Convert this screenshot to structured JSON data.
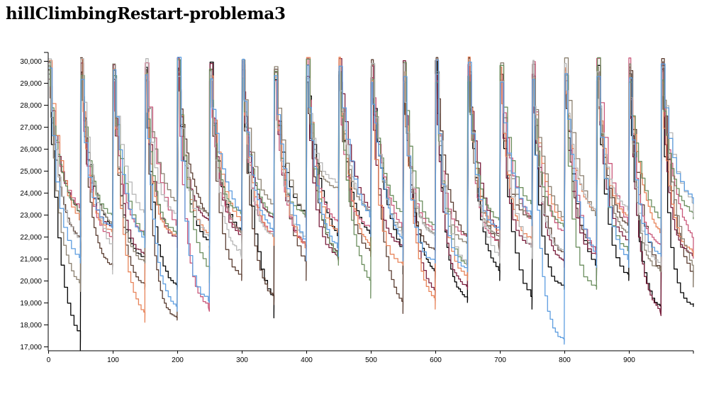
{
  "chart_data": {
    "type": "line",
    "title": "hillClimbingRestart-problema3",
    "xlabel": "",
    "ylabel": "",
    "xlim": [
      0,
      1000
    ],
    "ylim": [
      16800,
      30400
    ],
    "x_ticks": [
      0,
      100,
      200,
      300,
      400,
      500,
      600,
      700,
      800,
      900
    ],
    "x_tick_labels": [
      "0",
      "100",
      "200",
      "300",
      "400",
      "500",
      "600",
      "700",
      "800",
      "900"
    ],
    "y_ticks": [
      17000,
      18000,
      19000,
      20000,
      21000,
      22000,
      23000,
      24000,
      25000,
      26000,
      27000,
      28000,
      29000,
      30000
    ],
    "y_tick_labels": [
      "17,000",
      "18,000",
      "19,000",
      "20,000",
      "21,000",
      "22,000",
      "23,000",
      "24,000",
      "25,000",
      "26,000",
      "27,000",
      "28,000",
      "29,000",
      "30,000"
    ],
    "grid": false,
    "legend": "none",
    "restart_period": 50,
    "series": [
      {
        "color": "#000000",
        "minima": [
          16800,
          22000,
          21000,
          19600,
          21500,
          22000,
          18300,
          22500,
          21000,
          21800,
          20300,
          19900,
          19000,
          20000,
          18700,
          19600,
          20000,
          20000,
          18500,
          18800
        ]
      },
      {
        "color": "#5a3d31",
        "minima": [
          21500,
          20500,
          19600,
          18200,
          22200,
          20000,
          18900,
          20000,
          20900,
          21100,
          18500,
          21300,
          21500,
          21300,
          22800,
          21000,
          21300,
          22100,
          19600,
          19700
        ]
      },
      {
        "color": "#7a1f3d",
        "minima": [
          22500,
          22400,
          21000,
          21900,
          22500,
          21800,
          22600,
          21300,
          21100,
          22500,
          21500,
          19100,
          19600,
          21100,
          21500,
          20600,
          21000,
          21600,
          18400,
          21100
        ]
      },
      {
        "color": "#c9587a",
        "minima": [
          23000,
          21800,
          22000,
          21500,
          18600,
          21900,
          22000,
          21300,
          22500,
          22300,
          21700,
          22200,
          21900,
          21700,
          21800,
          21800,
          20700,
          21700,
          21500,
          21000
        ]
      },
      {
        "color": "#e8845a",
        "minima": [
          21800,
          22200,
          18100,
          22000,
          21900,
          22200,
          21600,
          21000,
          22000,
          21100,
          20700,
          18700,
          20000,
          22100,
          21700,
          22000,
          22800,
          22700,
          21300,
          21100
        ]
      },
      {
        "color": "#8b8070",
        "minima": [
          19500,
          22000,
          20800,
          22800,
          23000,
          21700,
          23000,
          22000,
          24100,
          23000,
          21700,
          22000,
          21600,
          21900,
          22500,
          21900,
          22000,
          21900,
          20400,
          19700
        ]
      },
      {
        "color": "#6b8e5e",
        "minima": [
          22700,
          22800,
          21500,
          22100,
          19900,
          23000,
          22600,
          23000,
          20700,
          19200,
          22500,
          22200,
          20500,
          22500,
          23000,
          22400,
          19600,
          21200,
          22200,
          22800
        ]
      },
      {
        "color": "#b7b7b7",
        "minima": [
          21600,
          20300,
          22400,
          22800,
          21600,
          21000,
          22000,
          21700,
          24400,
          22700,
          21500,
          22000,
          20400,
          20800,
          21000,
          21300,
          22800,
          23100,
          20700,
          22900
        ]
      },
      {
        "color": "#5e9ee0",
        "minima": [
          20800,
          22400,
          21500,
          18600,
          19000,
          22300,
          22000,
          20900,
          21100,
          22000,
          20900,
          20800,
          20400,
          22300,
          22500,
          17100,
          20600,
          20600,
          21100,
          23500
        ]
      }
    ]
  }
}
